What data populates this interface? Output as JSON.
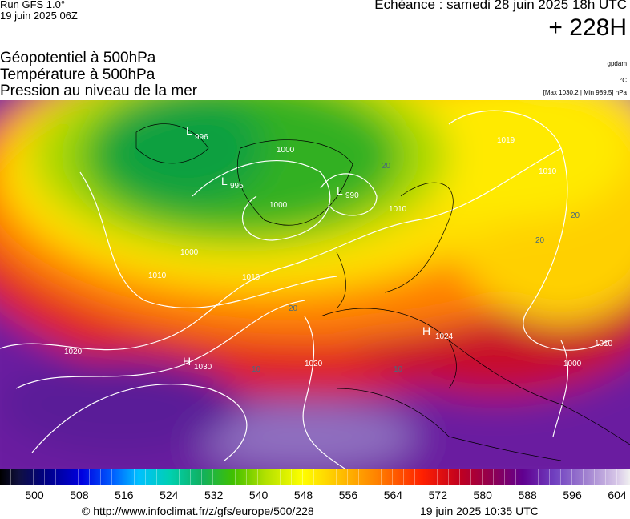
{
  "header": {
    "run": "Run GFS 1.0°",
    "run_date": "19 juin 2025 06Z",
    "valid": "Echéance : samedi 28 juin 2025 18h UTC",
    "lead": "+ 228H"
  },
  "fields": [
    "Géopotentiel à 500hPa",
    "Température à 500hPa",
    "Pression au niveau de la mer"
  ],
  "units": [
    "gpdam",
    "°C",
    "[Max 1030.2 | Min 989.5] hPa"
  ],
  "map_labels": [
    "L",
    "996",
    "L",
    "995",
    "L",
    "990",
    "H",
    "1030",
    "H",
    "1024",
    "1000",
    "1000",
    "1000",
    "1010",
    "1010",
    "1010",
    "1020",
    "1020",
    "1019",
    "1010",
    "1000",
    "1010",
    "20",
    "20",
    "20",
    "20",
    "10",
    "10"
  ],
  "colorbar": {
    "ticks": [
      500,
      508,
      516,
      524,
      532,
      540,
      548,
      556,
      564,
      572,
      580,
      588,
      596,
      604
    ]
  },
  "footer": {
    "url": "© http://www.infoclimat.fr/z/gfs/europe/500/228",
    "generated": "19 juin 2025 10:35 UTC"
  }
}
